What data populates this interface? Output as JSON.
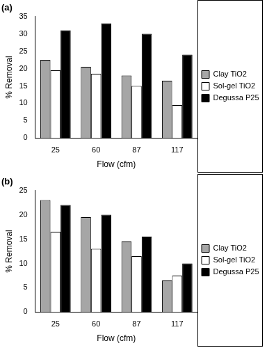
{
  "chart_data": [
    {
      "type": "bar",
      "title": "(a)",
      "x_label": "Flow (cfm)",
      "y_label": "% Removal",
      "categories": [
        "25",
        "60",
        "87",
        "117"
      ],
      "series": [
        {
          "name": "Clay TiO2",
          "color": "#a6a6a6",
          "values": [
            22.5,
            20.5,
            18,
            16.5
          ]
        },
        {
          "name": "Sol-gel TiO2",
          "color": "#ffffff",
          "values": [
            19.5,
            18.5,
            15,
            9.5
          ]
        },
        {
          "name": "Degussa P25",
          "color": "#000000",
          "values": [
            31,
            33,
            30,
            24
          ]
        }
      ],
      "ylim": [
        0,
        35
      ],
      "yticks": [
        0,
        5,
        10,
        15,
        20,
        25,
        30,
        35
      ],
      "grid": false,
      "legend": "right"
    },
    {
      "type": "bar",
      "title": "(b)",
      "x_label": "Flow (cfm)",
      "y_label": "% Removal",
      "categories": [
        "25",
        "60",
        "87",
        "117"
      ],
      "series": [
        {
          "name": "Clay TiO2",
          "color": "#a6a6a6",
          "values": [
            23,
            19.5,
            14.5,
            6.5
          ]
        },
        {
          "name": "Sol-gel TiO2",
          "color": "#ffffff",
          "values": [
            16.5,
            13,
            11.5,
            7.5
          ]
        },
        {
          "name": "Degussa P25",
          "color": "#000000",
          "values": [
            22,
            20,
            15.5,
            10
          ]
        }
      ],
      "ylim": [
        0,
        25
      ],
      "yticks": [
        0,
        5,
        10,
        15,
        20,
        25
      ],
      "grid": false,
      "legend": "right"
    }
  ]
}
